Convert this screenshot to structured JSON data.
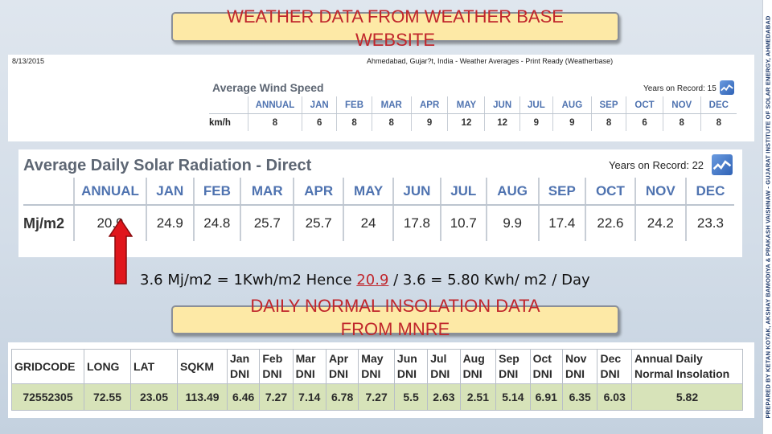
{
  "top_banner": {
    "line1": "WEATHER DATA FROM WEATHER BASE",
    "line2": "WEBSITE"
  },
  "print_header": {
    "date": "8/13/2015",
    "source": "Ahmedabad, Gujar?t, India - Weather Averages - Print Ready (Weatherbase)"
  },
  "wind": {
    "title": "Average Wind Speed",
    "records": "Years on Record: 15",
    "unit": "km/h",
    "headers": [
      "ANNUAL",
      "JAN",
      "FEB",
      "MAR",
      "APR",
      "MAY",
      "JUN",
      "JUL",
      "AUG",
      "SEP",
      "OCT",
      "NOV",
      "DEC"
    ],
    "values": [
      "8",
      "6",
      "8",
      "8",
      "9",
      "12",
      "12",
      "9",
      "9",
      "8",
      "6",
      "8",
      "8"
    ]
  },
  "solar": {
    "title": "Average Daily Solar Radiation - Direct",
    "records": "Years on Record: 22",
    "unit": "Mj/m2",
    "headers": [
      "ANNUAL",
      "JAN",
      "FEB",
      "MAR",
      "APR",
      "MAY",
      "JUN",
      "JUL",
      "AUG",
      "SEP",
      "OCT",
      "NOV",
      "DEC"
    ],
    "values": [
      "20.9",
      "24.9",
      "24.8",
      "25.7",
      "25.7",
      "24",
      "17.8",
      "10.7",
      "9.9",
      "17.4",
      "22.6",
      "24.2",
      "23.3"
    ]
  },
  "equation": {
    "before": "3.6 Mj/m2 = 1Kwh/m2  Hence ",
    "highlight": "20.9",
    "after": " / 3.6 = 5.80 Kwh/ m2 / Day"
  },
  "bottom_banner": {
    "line1": "DAILY NORMAL INSOLATION DATA",
    "line2": "FROM MNRE"
  },
  "mnre": {
    "headers": [
      [
        "GRIDCODE"
      ],
      [
        "LONG"
      ],
      [
        "LAT"
      ],
      [
        "SQKM"
      ],
      [
        "Jan",
        "DNI"
      ],
      [
        "Feb",
        "DNI"
      ],
      [
        "Mar",
        "DNI"
      ],
      [
        "Apr",
        "DNI"
      ],
      [
        "May",
        "DNI"
      ],
      [
        "Jun",
        "DNI"
      ],
      [
        "Jul",
        "DNI"
      ],
      [
        "Aug",
        "DNI"
      ],
      [
        "Sep",
        "DNI"
      ],
      [
        "Oct",
        "DNI"
      ],
      [
        "Nov",
        "DNI"
      ],
      [
        "Dec",
        "DNI"
      ],
      [
        "Annual Daily",
        "Normal Insolation"
      ]
    ],
    "values": [
      "72552305",
      "72.55",
      "23.05",
      "113.49",
      "6.46",
      "7.27",
      "7.14",
      "6.78",
      "7.27",
      "5.5",
      "2.63",
      "2.51",
      "5.14",
      "6.91",
      "6.35",
      "6.03",
      "5.82"
    ]
  },
  "credit": "PREPARED BY KETAN KOTAK, AKSHAY BAMODIYA & PRAKASH VAISHNAW - GUJARAT INSTITUTE OF SOLAR ENERGY, AHMEDABAD",
  "colors": {
    "banner_bg": "#fde9a6",
    "banner_text": "#c0262c",
    "header_blue": "#4f73b0",
    "mnre_row": "#d7e3b9",
    "arrow": "#e0161c"
  },
  "icons": {
    "arrow": "up-arrow-icon",
    "weatherbase": "weatherbase-logo-icon"
  }
}
